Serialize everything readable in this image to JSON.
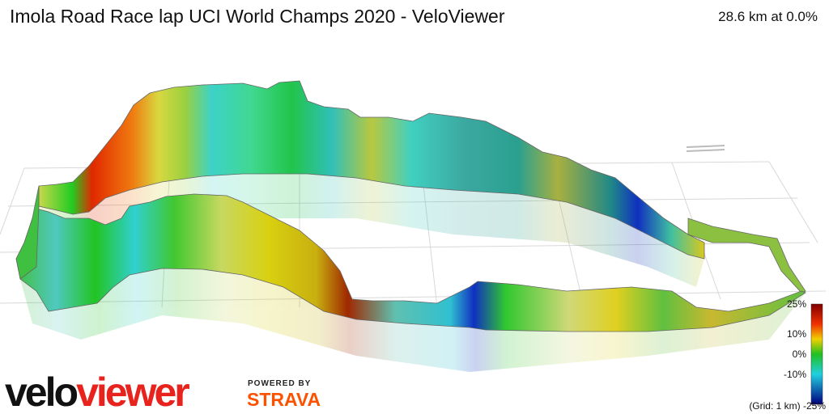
{
  "header": {
    "title": "Imola Road Race lap UCI World Champs 2020 - VeloViewer",
    "summary": "28.6 km at 0.0%"
  },
  "legend": {
    "labels": [
      "25%",
      "10%",
      "0%",
      "-10%",
      "(Grid: 1 km) -25%"
    ]
  },
  "branding": {
    "logo": [
      "velo",
      "viewer"
    ],
    "powered_by": "POWERED BY",
    "partner": "STRAVA"
  }
}
